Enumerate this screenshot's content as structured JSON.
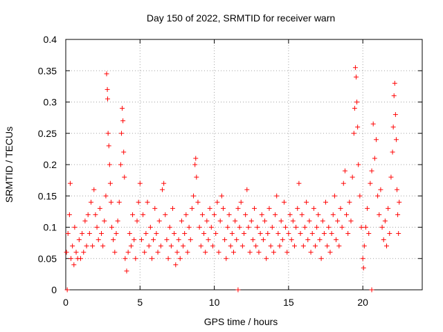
{
  "chart_data": {
    "type": "scatter",
    "title": "Day 150 of 2022, SRMTID for receiver warn",
    "xlabel": "GPS time / hours",
    "ylabel": "SRMTID / TECUs",
    "xlim": [
      0,
      24
    ],
    "ylim": [
      0,
      0.4
    ],
    "x_ticks": [
      0,
      5,
      10,
      15,
      20
    ],
    "x_tick_labels": [
      "0",
      "5",
      "10",
      "15",
      "20"
    ],
    "y_ticks": [
      0,
      0.05,
      0.1,
      0.15,
      0.2,
      0.25,
      0.3,
      0.35,
      0.4
    ],
    "y_tick_labels": [
      "0",
      "0.05",
      "0.1",
      "0.15",
      "0.2",
      "0.25",
      "0.3",
      "0.35",
      "0.4"
    ],
    "grid": true,
    "marker": "plus",
    "color": "#ff0000",
    "series": [
      {
        "name": "SRMTID",
        "points": [
          [
            0.05,
            0.06
          ],
          [
            0.15,
            0.09
          ],
          [
            0.25,
            0.12
          ],
          [
            0.3,
            0.17
          ],
          [
            0.35,
            0.05
          ],
          [
            0.45,
            0.07
          ],
          [
            0.55,
            0.04
          ],
          [
            0.6,
            0.1
          ],
          [
            0.7,
            0.06
          ],
          [
            0.8,
            0.05
          ],
          [
            0.9,
            0.08
          ],
          [
            1.0,
            0.05
          ],
          [
            1.1,
            0.09
          ],
          [
            1.2,
            0.06
          ],
          [
            1.3,
            0.11
          ],
          [
            1.4,
            0.07
          ],
          [
            1.5,
            0.12
          ],
          [
            1.6,
            0.09
          ],
          [
            1.7,
            0.14
          ],
          [
            1.8,
            0.07
          ],
          [
            1.9,
            0.16
          ],
          [
            2.0,
            0.12
          ],
          [
            2.1,
            0.1
          ],
          [
            2.2,
            0.08
          ],
          [
            2.3,
            0.13
          ],
          [
            2.4,
            0.09
          ],
          [
            2.5,
            0.07
          ],
          [
            2.6,
            0.11
          ],
          [
            2.7,
            0.15
          ],
          [
            2.75,
            0.345
          ],
          [
            2.8,
            0.32
          ],
          [
            2.82,
            0.305
          ],
          [
            2.85,
            0.25
          ],
          [
            2.9,
            0.23
          ],
          [
            2.95,
            0.2
          ],
          [
            3.0,
            0.17
          ],
          [
            3.05,
            0.14
          ],
          [
            3.1,
            0.1
          ],
          [
            3.2,
            0.08
          ],
          [
            3.3,
            0.06
          ],
          [
            3.4,
            0.09
          ],
          [
            3.5,
            0.11
          ],
          [
            3.6,
            0.14
          ],
          [
            3.7,
            0.2
          ],
          [
            3.75,
            0.25
          ],
          [
            3.8,
            0.29
          ],
          [
            3.85,
            0.27
          ],
          [
            3.9,
            0.22
          ],
          [
            3.95,
            0.18
          ],
          [
            4.0,
            0.05
          ],
          [
            4.1,
            0.03
          ],
          [
            4.2,
            0.06
          ],
          [
            4.3,
            0.09
          ],
          [
            4.4,
            0.07
          ],
          [
            4.5,
            0.12
          ],
          [
            4.6,
            0.08
          ],
          [
            4.7,
            0.05
          ],
          [
            4.8,
            0.11
          ],
          [
            4.9,
            0.14
          ],
          [
            5.0,
            0.17
          ],
          [
            5.1,
            0.08
          ],
          [
            5.2,
            0.12
          ],
          [
            5.3,
            0.06
          ],
          [
            5.4,
            0.09
          ],
          [
            5.5,
            0.14
          ],
          [
            5.6,
            0.07
          ],
          [
            5.7,
            0.1
          ],
          [
            5.8,
            0.05
          ],
          [
            5.9,
            0.08
          ],
          [
            6.0,
            0.13
          ],
          [
            6.1,
            0.09
          ],
          [
            6.2,
            0.06
          ],
          [
            6.3,
            0.11
          ],
          [
            6.4,
            0.07
          ],
          [
            6.5,
            0.16
          ],
          [
            6.6,
            0.17
          ],
          [
            6.7,
            0.12
          ],
          [
            6.8,
            0.08
          ],
          [
            6.9,
            0.05
          ],
          [
            7.0,
            0.1
          ],
          [
            7.1,
            0.07
          ],
          [
            7.2,
            0.13
          ],
          [
            7.3,
            0.09
          ],
          [
            7.4,
            0.04
          ],
          [
            7.5,
            0.06
          ],
          [
            7.6,
            0.08
          ],
          [
            7.7,
            0.05
          ],
          [
            7.8,
            0.11
          ],
          [
            7.9,
            0.07
          ],
          [
            8.0,
            0.09
          ],
          [
            8.1,
            0.12
          ],
          [
            8.2,
            0.06
          ],
          [
            8.3,
            0.1
          ],
          [
            8.4,
            0.08
          ],
          [
            8.5,
            0.13
          ],
          [
            8.6,
            0.15
          ],
          [
            8.7,
            0.2
          ],
          [
            8.75,
            0.21
          ],
          [
            8.8,
            0.18
          ],
          [
            8.9,
            0.14
          ],
          [
            9.0,
            0.1
          ],
          [
            9.1,
            0.07
          ],
          [
            9.2,
            0.12
          ],
          [
            9.3,
            0.09
          ],
          [
            9.4,
            0.06
          ],
          [
            9.5,
            0.11
          ],
          [
            9.6,
            0.08
          ],
          [
            9.7,
            0.13
          ],
          [
            9.8,
            0.1
          ],
          [
            9.9,
            0.07
          ],
          [
            10.0,
            0.12
          ],
          [
            10.1,
            0.09
          ],
          [
            10.2,
            0.14
          ],
          [
            10.3,
            0.06
          ],
          [
            10.4,
            0.11
          ],
          [
            10.5,
            0.15
          ],
          [
            10.6,
            0.13
          ],
          [
            10.7,
            0.08
          ],
          [
            10.8,
            0.05
          ],
          [
            10.9,
            0.1
          ],
          [
            11.0,
            0.12
          ],
          [
            11.1,
            0.07
          ],
          [
            11.2,
            0.09
          ],
          [
            11.3,
            0.06
          ],
          [
            11.4,
            0.11
          ],
          [
            11.5,
            0.08
          ],
          [
            11.6,
            0.13
          ],
          [
            11.7,
            0.1
          ],
          [
            11.8,
            0.14
          ],
          [
            11.9,
            0.07
          ],
          [
            12.0,
            0.09
          ],
          [
            12.1,
            0.12
          ],
          [
            12.2,
            0.16
          ],
          [
            12.3,
            0.1
          ],
          [
            12.4,
            0.06
          ],
          [
            12.5,
            0.11
          ],
          [
            12.6,
            0.08
          ],
          [
            12.7,
            0.13
          ],
          [
            12.8,
            0.07
          ],
          [
            12.9,
            0.1
          ],
          [
            13.0,
            0.06
          ],
          [
            13.1,
            0.09
          ],
          [
            13.2,
            0.12
          ],
          [
            13.3,
            0.08
          ],
          [
            13.4,
            0.11
          ],
          [
            13.5,
            0.05
          ],
          [
            13.6,
            0.09
          ],
          [
            13.7,
            0.13
          ],
          [
            13.8,
            0.07
          ],
          [
            13.9,
            0.1
          ],
          [
            14.0,
            0.06
          ],
          [
            14.1,
            0.12
          ],
          [
            14.2,
            0.15
          ],
          [
            14.3,
            0.09
          ],
          [
            14.4,
            0.07
          ],
          [
            14.5,
            0.11
          ],
          [
            14.6,
            0.08
          ],
          [
            14.7,
            0.14
          ],
          [
            14.8,
            0.1
          ],
          [
            14.9,
            0.06
          ],
          [
            15.0,
            0.09
          ],
          [
            15.1,
            0.12
          ],
          [
            15.2,
            0.08
          ],
          [
            15.3,
            0.11
          ],
          [
            15.4,
            0.07
          ],
          [
            15.5,
            0.1
          ],
          [
            15.6,
            0.13
          ],
          [
            15.7,
            0.17
          ],
          [
            15.8,
            0.09
          ],
          [
            15.9,
            0.12
          ],
          [
            16.0,
            0.07
          ],
          [
            16.1,
            0.1
          ],
          [
            16.2,
            0.14
          ],
          [
            16.3,
            0.08
          ],
          [
            16.4,
            0.11
          ],
          [
            16.5,
            0.06
          ],
          [
            16.6,
            0.09
          ],
          [
            16.7,
            0.13
          ],
          [
            16.8,
            0.07
          ],
          [
            16.9,
            0.1
          ],
          [
            17.0,
            0.12
          ],
          [
            17.1,
            0.08
          ],
          [
            17.2,
            0.05
          ],
          [
            17.3,
            0.11
          ],
          [
            17.4,
            0.09
          ],
          [
            17.5,
            0.14
          ],
          [
            17.6,
            0.07
          ],
          [
            17.7,
            0.1
          ],
          [
            17.8,
            0.06
          ],
          [
            17.9,
            0.09
          ],
          [
            18.0,
            0.12
          ],
          [
            18.1,
            0.15
          ],
          [
            18.2,
            0.08
          ],
          [
            18.3,
            0.11
          ],
          [
            18.4,
            0.07
          ],
          [
            18.5,
            0.13
          ],
          [
            18.6,
            0.1
          ],
          [
            18.7,
            0.17
          ],
          [
            18.8,
            0.19
          ],
          [
            18.9,
            0.12
          ],
          [
            19.0,
            0.09
          ],
          [
            19.1,
            0.14
          ],
          [
            19.2,
            0.11
          ],
          [
            19.3,
            0.18
          ],
          [
            19.4,
            0.25
          ],
          [
            19.45,
            0.29
          ],
          [
            19.5,
            0.355
          ],
          [
            19.55,
            0.34
          ],
          [
            19.6,
            0.3
          ],
          [
            19.65,
            0.26
          ],
          [
            19.7,
            0.2
          ],
          [
            19.8,
            0.15
          ],
          [
            19.9,
            0.1
          ],
          [
            20.0,
            0.05
          ],
          [
            20.05,
            0.035
          ],
          [
            20.1,
            0.07
          ],
          [
            20.2,
            0.1
          ],
          [
            20.3,
            0.13
          ],
          [
            20.4,
            0.09
          ],
          [
            20.5,
            0.17
          ],
          [
            20.6,
            0.19
          ],
          [
            20.7,
            0.265
          ],
          [
            20.8,
            0.21
          ],
          [
            20.9,
            0.24
          ],
          [
            21.0,
            0.15
          ],
          [
            21.1,
            0.12
          ],
          [
            21.2,
            0.16
          ],
          [
            21.3,
            0.1
          ],
          [
            21.4,
            0.08
          ],
          [
            21.5,
            0.11
          ],
          [
            21.6,
            0.07
          ],
          [
            21.7,
            0.13
          ],
          [
            21.8,
            0.09
          ],
          [
            21.9,
            0.18
          ],
          [
            22.0,
            0.22
          ],
          [
            22.05,
            0.26
          ],
          [
            22.1,
            0.31
          ],
          [
            22.15,
            0.33
          ],
          [
            22.2,
            0.28
          ],
          [
            22.25,
            0.24
          ],
          [
            22.3,
            0.16
          ],
          [
            22.35,
            0.12
          ],
          [
            22.4,
            0.09
          ],
          [
            22.45,
            0.14
          ]
        ]
      }
    ],
    "zero_points": [
      [
        0.1,
        0.0
      ],
      [
        11.6,
        0.0
      ],
      [
        20.6,
        0.0
      ]
    ]
  }
}
